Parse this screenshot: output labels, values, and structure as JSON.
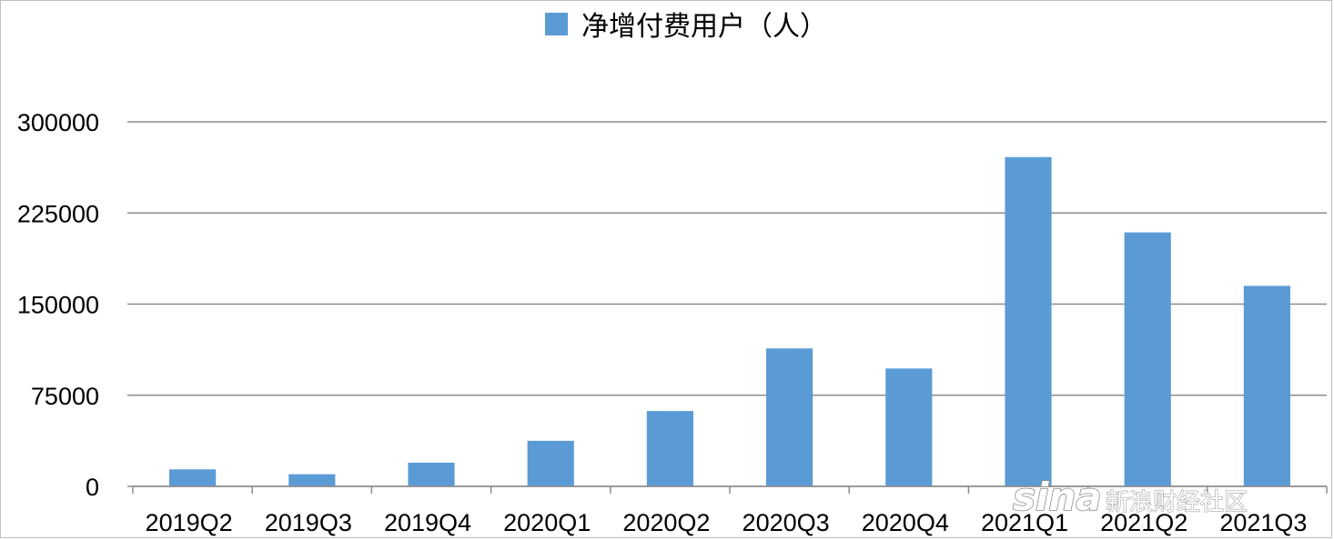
{
  "chart_data": {
    "type": "bar",
    "legend": {
      "label": "净增付费用户（人）",
      "placement": "top-center"
    },
    "categories": [
      "2019Q2",
      "2019Q3",
      "2019Q4",
      "2020Q1",
      "2020Q2",
      "2020Q3",
      "2020Q4",
      "2021Q1",
      "2021Q2",
      "2021Q3"
    ],
    "series": [
      {
        "name": "净增付费用户（人）",
        "values": [
          14000,
          10000,
          19500,
          37500,
          62000,
          113500,
          97000,
          271000,
          209000,
          165000
        ]
      }
    ],
    "y_ticks": [
      "300000",
      "225000",
      "150000",
      "75000",
      "0"
    ],
    "ylim": [
      0,
      300000
    ],
    "grid": true,
    "colors": {
      "bar": "#5b9bd5",
      "grid": "#8c8c8c",
      "axis": "#8c8c8c"
    }
  },
  "watermark": {
    "logo": "sina",
    "text": "新浪财经社区"
  }
}
